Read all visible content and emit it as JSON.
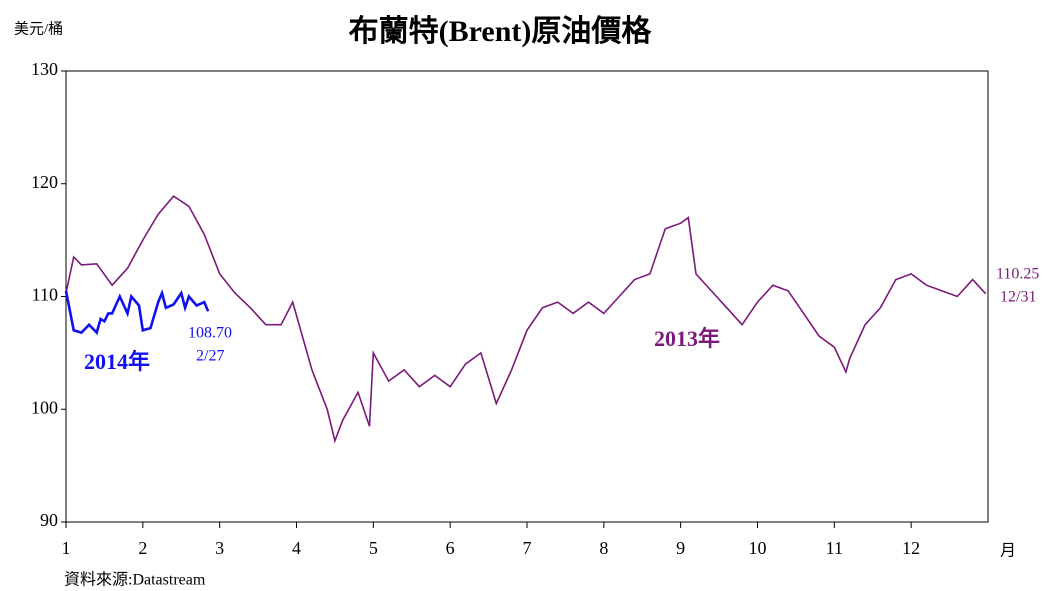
{
  "chart_data": {
    "type": "line",
    "title": "布蘭特(Brent)原油價格",
    "y_label": "美元/桶",
    "x_label": "月",
    "source": "資料來源:Datastream",
    "xlim": [
      1,
      13
    ],
    "xticks": [
      1,
      2,
      3,
      4,
      5,
      6,
      7,
      8,
      9,
      10,
      11,
      12
    ],
    "ylim": [
      90,
      130
    ],
    "yticks": [
      90,
      100,
      110,
      120,
      130
    ],
    "series": [
      {
        "name": "2013年",
        "color": "#7a1a7a",
        "x": [
          1.0,
          1.1,
          1.2,
          1.4,
          1.6,
          1.8,
          2.0,
          2.2,
          2.4,
          2.6,
          2.8,
          3.0,
          3.2,
          3.4,
          3.6,
          3.8,
          3.95,
          4.2,
          4.4,
          4.5,
          4.6,
          4.8,
          4.95,
          5.0,
          5.2,
          5.4,
          5.6,
          5.8,
          6.0,
          6.2,
          6.4,
          6.6,
          6.8,
          7.0,
          7.2,
          7.4,
          7.6,
          7.8,
          8.0,
          8.2,
          8.4,
          8.6,
          8.8,
          9.0,
          9.1,
          9.2,
          9.4,
          9.6,
          9.8,
          10.0,
          10.2,
          10.4,
          10.6,
          10.8,
          11.0,
          11.15,
          11.2,
          11.4,
          11.6,
          11.8,
          12.0,
          12.2,
          12.4,
          12.6,
          12.8,
          12.97
        ],
        "values": [
          110.3,
          113.5,
          112.8,
          112.9,
          111.0,
          112.5,
          115.0,
          117.3,
          118.9,
          118.0,
          115.5,
          112.0,
          110.3,
          109.0,
          107.5,
          107.5,
          109.5,
          103.5,
          100.0,
          97.2,
          99.0,
          101.5,
          98.5,
          105.0,
          102.5,
          103.5,
          102.0,
          103.0,
          102.0,
          104.0,
          105.0,
          100.5,
          103.5,
          107.0,
          109.0,
          109.5,
          108.5,
          109.5,
          108.5,
          110.0,
          111.5,
          112.0,
          116.0,
          116.5,
          117.0,
          112.0,
          110.5,
          109.0,
          107.5,
          109.5,
          111.0,
          110.5,
          108.5,
          106.5,
          105.5,
          103.3,
          104.5,
          107.5,
          109.0,
          111.5,
          112.0,
          111.0,
          110.5,
          110.0,
          111.5,
          110.25
        ]
      },
      {
        "name": "2014年",
        "color": "#1010f0",
        "x": [
          1.0,
          1.1,
          1.2,
          1.3,
          1.4,
          1.45,
          1.5,
          1.55,
          1.6,
          1.7,
          1.8,
          1.85,
          1.95,
          2.0,
          2.1,
          2.2,
          2.25,
          2.3,
          2.4,
          2.5,
          2.55,
          2.6,
          2.7,
          2.8,
          2.85
        ],
        "values": [
          110.5,
          107.0,
          106.8,
          107.5,
          106.8,
          108.0,
          107.8,
          108.5,
          108.5,
          110.0,
          108.5,
          110.0,
          109.2,
          107.0,
          107.2,
          109.5,
          110.3,
          109.0,
          109.3,
          110.3,
          109.0,
          110.0,
          109.2,
          109.5,
          108.7
        ]
      }
    ],
    "annotations": [
      {
        "text": "108.70"
      },
      {
        "text": "2/27"
      },
      {
        "text": "110.25"
      },
      {
        "text": "12/31"
      }
    ]
  }
}
